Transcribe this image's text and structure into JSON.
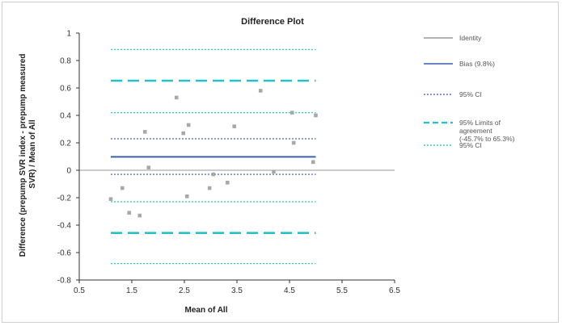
{
  "chart_data": {
    "type": "scatter",
    "title": "Difference Plot",
    "xlabel": "Mean of All",
    "ylabel_lines": [
      "Difference (prepump SVR index - prepump measured",
      "SVR) / Mean of All"
    ],
    "xlim": [
      0.5,
      6.5
    ],
    "ylim": [
      -0.8,
      1.0
    ],
    "xticks": [
      0.5,
      1.5,
      2.5,
      3.5,
      4.5,
      5.5,
      6.5
    ],
    "yticks": [
      -0.8,
      -0.6,
      -0.4,
      -0.2,
      0,
      0.2,
      0.4,
      0.6,
      0.8,
      1.0
    ],
    "xtick_labels": [
      "0.5",
      "1.5",
      "2.5",
      "3.5",
      "4.5",
      "5.5",
      "6.5"
    ],
    "ytick_labels": [
      "-0.8",
      "-0.6",
      "-0.4",
      "-0.2",
      "0",
      "0.2",
      "0.4",
      "0.6",
      "0.8",
      "1"
    ],
    "grid": false,
    "legend_position": "right",
    "points": [
      {
        "x": 1.1,
        "y": -0.21
      },
      {
        "x": 1.32,
        "y": -0.13
      },
      {
        "x": 1.45,
        "y": -0.31
      },
      {
        "x": 1.65,
        "y": -0.33
      },
      {
        "x": 1.75,
        "y": 0.28
      },
      {
        "x": 1.82,
        "y": 0.02
      },
      {
        "x": 2.35,
        "y": 0.53
      },
      {
        "x": 2.48,
        "y": 0.27
      },
      {
        "x": 2.58,
        "y": 0.33
      },
      {
        "x": 2.55,
        "y": -0.19
      },
      {
        "x": 2.98,
        "y": -0.13
      },
      {
        "x": 3.05,
        "y": -0.03
      },
      {
        "x": 3.32,
        "y": -0.09
      },
      {
        "x": 3.45,
        "y": 0.32
      },
      {
        "x": 3.95,
        "y": 0.58
      },
      {
        "x": 4.2,
        "y": -0.01
      },
      {
        "x": 4.55,
        "y": 0.42
      },
      {
        "x": 4.58,
        "y": 0.2
      },
      {
        "x": 4.95,
        "y": 0.06
      },
      {
        "x": 5.0,
        "y": 0.4
      }
    ],
    "lines": [
      {
        "name": "Identity",
        "y": 0,
        "style": "solid",
        "color": "#9a9a9a",
        "span": "full"
      },
      {
        "name": "Bias (9.8%)",
        "y": 0.098,
        "style": "solid",
        "color": "#3a5fb0",
        "span": "data"
      },
      {
        "name": "95% CI",
        "y": 0.23,
        "style": "dotted",
        "color": "#5a6fd0",
        "span": "data"
      },
      {
        "name": "95% CI",
        "y": -0.03,
        "style": "dotted",
        "color": "#5a6fd0",
        "span": "data"
      },
      {
        "name": "95% Limits of agreement (-45.7% to 65.3%)",
        "y": 0.653,
        "style": "dashed",
        "color": "#26c0c9",
        "span": "data"
      },
      {
        "name": "95% Limits of agreement (-45.7% to 65.3%)",
        "y": -0.457,
        "style": "dashed",
        "color": "#26c0c9",
        "span": "data"
      },
      {
        "name": "95% CI",
        "y": 0.88,
        "style": "dotted",
        "color": "#2ed3b8",
        "span": "data"
      },
      {
        "name": "95% CI",
        "y": 0.42,
        "style": "dotted",
        "color": "#2ed3b8",
        "span": "data"
      },
      {
        "name": "95% CI",
        "y": -0.23,
        "style": "dotted",
        "color": "#2ed3b8",
        "span": "data"
      },
      {
        "name": "95% CI",
        "y": -0.68,
        "style": "dotted",
        "color": "#2ed3b8",
        "span": "data"
      }
    ],
    "data_x_range": [
      1.1,
      5.0
    ],
    "legend": [
      {
        "label": "Identity",
        "style": "solid",
        "color": "#9a9a9a"
      },
      {
        "label": "Bias (9.8%)",
        "style": "solid",
        "color": "#3a5fb0"
      },
      {
        "label": "95% CI",
        "style": "dotted",
        "color": "#5a6fd0"
      },
      {
        "label_lines": [
          "95% Limits of",
          "agreement",
          "(-45.7% to 65.3%)"
        ],
        "style": "dashed",
        "color": "#26c0c9"
      },
      {
        "label": "95% CI",
        "style": "dotted",
        "color": "#2ed3b8"
      }
    ],
    "point_color": "#a8a8a8"
  }
}
